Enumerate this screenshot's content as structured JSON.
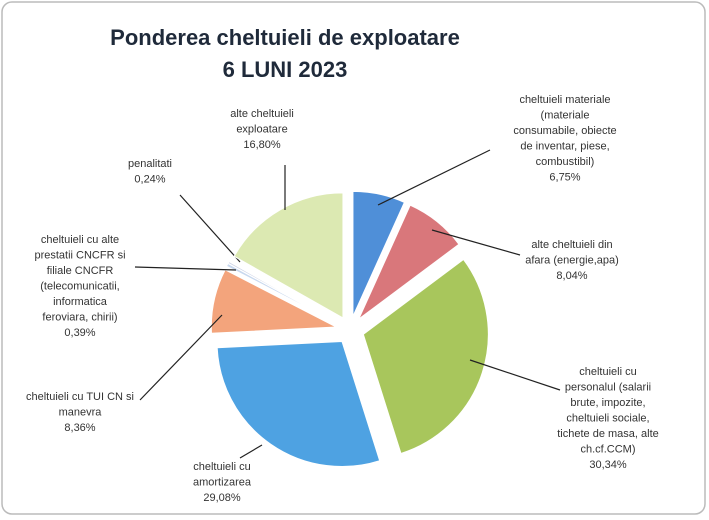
{
  "chart_data": {
    "type": "pie",
    "title": "Ponderea cheltuieli de exploatare",
    "subtitle": "6 LUNI 2023",
    "categories": [
      "cheltuieli materiale\n(materiale\nconsumabile, obiecte\nde inventar, piese,\ncombustibil)",
      "alte cheltuieli din\nafara (energie,apa)",
      "cheltuieli cu\npersonalul (salarii\nbrute, impozite,\ncheltuieli sociale,\ntichete de masa, alte\nch.cf.CCM)",
      "cheltuieli cu\namortizarea",
      "cheltuieli cu TUI CN si\nmanevra",
      "cheltuieli cu alte\nprestatii CNCFR si\nfiliale CNCFR\n(telecomunicatii,\ninformatica\nferoviara, chirii)",
      "penalitati",
      "alte cheltuieli\nexploatare"
    ],
    "values": [
      6.75,
      8.04,
      30.34,
      29.08,
      8.36,
      0.39,
      0.24,
      16.8
    ],
    "value_labels": [
      "6,75%",
      "8,04%",
      "30,34%",
      "29,08%",
      "8,36%",
      "0,39%",
      "0,24%",
      "16,80%"
    ],
    "colors": [
      "#4f8fd8",
      "#d9777b",
      "#a8c65c",
      "#4ea2e2",
      "#f3a47c",
      "#c8d8ee",
      "#cdd3e6",
      "#dce9b2"
    ]
  }
}
